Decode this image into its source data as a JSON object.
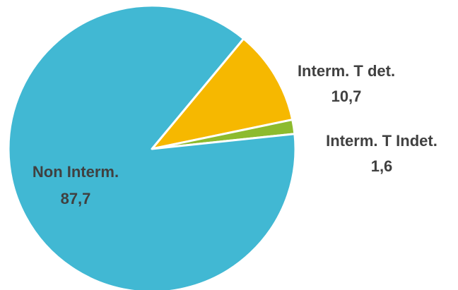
{
  "chart_data": {
    "type": "pie",
    "title": "",
    "slices": [
      {
        "label": "Interm. T det.",
        "value": 10.7,
        "value_text": "10,7",
        "color": "#F6B800"
      },
      {
        "label": "Interm. T Indet.",
        "value": 1.6,
        "value_text": "1,6",
        "color": "#8DBB2E"
      },
      {
        "label": "Non Interm.",
        "value": 87.7,
        "value_text": "87,7",
        "color": "#41B8D3"
      }
    ],
    "legend": "none"
  }
}
